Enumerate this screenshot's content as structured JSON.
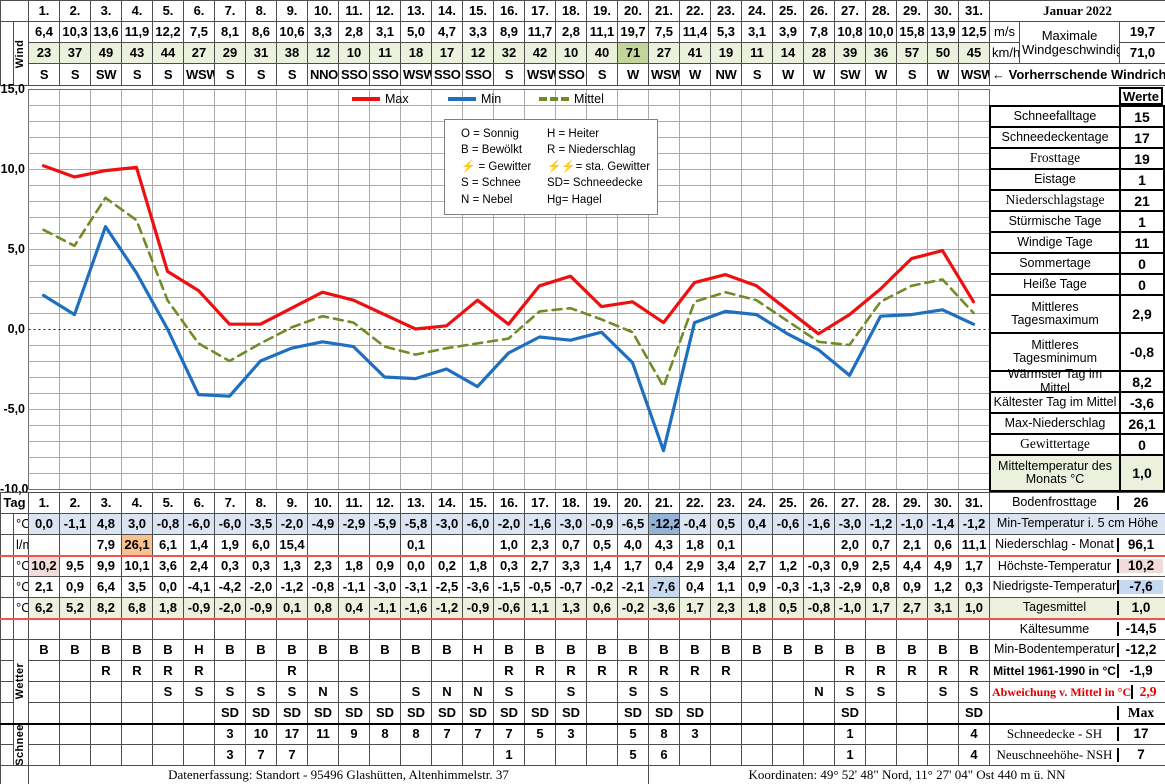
{
  "title": "Januar 2022",
  "days": [
    "1.",
    "2.",
    "3.",
    "4.",
    "5.",
    "6.",
    "7.",
    "8.",
    "9.",
    "10.",
    "11.",
    "12.",
    "13.",
    "14.",
    "15.",
    "16.",
    "17.",
    "18.",
    "19.",
    "20.",
    "21.",
    "22.",
    "23.",
    "24.",
    "25.",
    "26.",
    "27.",
    "28.",
    "29.",
    "30.",
    "31."
  ],
  "wind": {
    "row_label": "Wind",
    "unit_ms": "m/s",
    "unit_kmh": "km/h",
    "speed_ms": [
      "6,4",
      "10,3",
      "13,6",
      "11,9",
      "12,2",
      "7,5",
      "8,1",
      "8,6",
      "10,6",
      "3,3",
      "2,8",
      "3,1",
      "5,0",
      "4,7",
      "3,3",
      "8,9",
      "11,7",
      "2,8",
      "11,1",
      "19,7",
      "7,5",
      "11,4",
      "5,3",
      "3,1",
      "3,9",
      "7,8",
      "10,8",
      "10,0",
      "15,8",
      "13,9",
      "12,5"
    ],
    "speed_kmh": [
      "23",
      "37",
      "49",
      "43",
      "44",
      "27",
      "29",
      "31",
      "38",
      "12",
      "10",
      "11",
      "18",
      "17",
      "12",
      "32",
      "42",
      "10",
      "40",
      "71",
      "27",
      "41",
      "19",
      "11",
      "14",
      "28",
      "39",
      "36",
      "57",
      "50",
      "45"
    ],
    "direction": [
      "S",
      "S",
      "SW",
      "S",
      "S",
      "WSW",
      "S",
      "S",
      "S",
      "NNO",
      "SSO",
      "SSO",
      "WSW",
      "SSO",
      "SSO",
      "S",
      "WSW",
      "SSO",
      "S",
      "W",
      "WSW",
      "W",
      "NW",
      "S",
      "W",
      "W",
      "SW",
      "W",
      "S",
      "W",
      "WSW"
    ],
    "max_label": "Maximale Windgeschwindigkeit",
    "max_ms": "19,7",
    "max_kmh": "71,0",
    "prevailing_label": "← Vorherrschende Windrichtung"
  },
  "chart_data": {
    "type": "line",
    "title": "",
    "xlabel": "Tag",
    "ylabel": "°C",
    "x": [
      1,
      2,
      3,
      4,
      5,
      6,
      7,
      8,
      9,
      10,
      11,
      12,
      13,
      14,
      15,
      16,
      17,
      18,
      19,
      20,
      21,
      22,
      23,
      24,
      25,
      26,
      27,
      28,
      29,
      30,
      31
    ],
    "ylim": [
      -10,
      15
    ],
    "grid": true,
    "legend_position": "top",
    "yticks": [
      {
        "value": 15,
        "label": "15,0"
      },
      {
        "value": 10,
        "label": "10,0"
      },
      {
        "value": 5,
        "label": "5,0"
      },
      {
        "value": 0,
        "label": "0,0"
      },
      {
        "value": -5,
        "label": "-5,0"
      },
      {
        "value": -10,
        "label": "-10,0"
      }
    ],
    "series": [
      {
        "name": "Max",
        "color": "#ee1010",
        "dashed": false,
        "values": [
          10.2,
          9.5,
          9.9,
          10.1,
          3.6,
          2.4,
          0.3,
          0.3,
          1.3,
          2.3,
          1.8,
          0.9,
          0.0,
          0.2,
          1.8,
          0.3,
          2.7,
          3.3,
          1.4,
          1.7,
          0.4,
          2.9,
          3.4,
          2.7,
          1.2,
          -0.3,
          0.9,
          2.5,
          4.4,
          4.9,
          1.7
        ]
      },
      {
        "name": "Min",
        "color": "#1f6fc0",
        "dashed": false,
        "values": [
          2.1,
          0.9,
          6.4,
          3.5,
          0.0,
          -4.1,
          -4.2,
          -2.0,
          -1.2,
          -0.8,
          -1.1,
          -3.0,
          -3.1,
          -2.5,
          -3.6,
          -1.5,
          -0.5,
          -0.7,
          -0.2,
          -2.1,
          -7.6,
          0.4,
          1.1,
          0.9,
          -0.3,
          -1.3,
          -2.9,
          0.8,
          0.9,
          1.2,
          0.3
        ]
      },
      {
        "name": "Mittel",
        "color": "#6f8c26",
        "dashed": true,
        "values": [
          6.2,
          5.2,
          8.2,
          6.8,
          1.8,
          -0.9,
          -2.0,
          -0.9,
          0.1,
          0.8,
          0.4,
          -1.1,
          -1.6,
          -1.2,
          -0.9,
          -0.6,
          1.1,
          1.3,
          0.6,
          -0.2,
          -3.6,
          1.7,
          2.3,
          1.8,
          0.5,
          -0.8,
          -1.0,
          1.7,
          2.7,
          3.1,
          1.0
        ]
      }
    ]
  },
  "weather_legend": {
    "left": [
      {
        "code": "O",
        "label": "Sonnig",
        "red": false
      },
      {
        "code": "B",
        "label": "Bewölkt",
        "red": false
      },
      {
        "code": "⚡",
        "label": "Gewitter",
        "red": true
      },
      {
        "code": "S",
        "label": "Schnee",
        "red": false
      },
      {
        "code": "N",
        "label": "Nebel",
        "red": false
      }
    ],
    "right": [
      {
        "code": "H",
        "label": "Heiter",
        "red": false
      },
      {
        "code": "R",
        "label": "Niederschlag",
        "red": false
      },
      {
        "code": "⚡⚡",
        "label": "sta. Gewitter",
        "red": true
      },
      {
        "code": "SD",
        "label": "Schneedecke",
        "red": false
      },
      {
        "code": "Hg",
        "label": "Hagel",
        "red": false
      }
    ]
  },
  "sidebar": {
    "header": "Werte",
    "rows": [
      {
        "label": "Schneefalltage",
        "value": "15"
      },
      {
        "label": "Schneedeckentage",
        "value": "17"
      },
      {
        "label": "Frosttage",
        "value": "19"
      },
      {
        "label": "Eistage",
        "value": "1"
      },
      {
        "label": "Niederschlagstage",
        "value": "21"
      },
      {
        "label": "Stürmische Tage",
        "value": "1"
      },
      {
        "label": "Windige Tage",
        "value": "11"
      },
      {
        "label": "Sommertage",
        "value": "0"
      },
      {
        "label": "Heiße Tage",
        "value": "0"
      },
      {
        "label": "Mittleres Tagesmaximum",
        "value": "2,9"
      },
      {
        "label": "Mittleres Tagesminimum",
        "value": "-0,8"
      },
      {
        "label": "Wärmster Tag im Mittel",
        "value": "8,2"
      },
      {
        "label": "Kältester Tag im Mittel",
        "value": "-3,6"
      },
      {
        "label": "Max-Niederschlag",
        "value": "26,1"
      },
      {
        "label": "Gewittertage",
        "value": "0"
      },
      {
        "label": "Mitteltemperatur des Monats °C",
        "value": "1,0"
      }
    ]
  },
  "bottom": {
    "tag_label": "Tag",
    "unit_c": "°C",
    "unit_lm": "l/m²",
    "wetter_label": "Wetter",
    "schnee_label": "Schnee",
    "min5": [
      "0,0",
      "-1,1",
      "4,8",
      "3,0",
      "-0,8",
      "-6,0",
      "-6,0",
      "-3,5",
      "-2,0",
      "-4,9",
      "-2,9",
      "-5,9",
      "-5,8",
      "-3,0",
      "-6,0",
      "-2,0",
      "-1,6",
      "-3,0",
      "-0,9",
      "-6,5",
      "-12,2",
      "-0,4",
      "0,5",
      "0,4",
      "-0,6",
      "-1,6",
      "-3,0",
      "-1,2",
      "-1,0",
      "-1,4",
      "-1,2"
    ],
    "precip": [
      "",
      "",
      "7,9",
      "26,1",
      "6,1",
      "1,4",
      "1,9",
      "6,0",
      "15,4",
      "",
      "",
      "",
      "0,1",
      "",
      "",
      "1,0",
      "2,3",
      "0,7",
      "0,5",
      "4,0",
      "4,3",
      "1,8",
      "0,1",
      "",
      "",
      "",
      "2,0",
      "0,7",
      "2,1",
      "0,6",
      "11,1"
    ],
    "tmax": [
      "10,2",
      "9,5",
      "9,9",
      "10,1",
      "3,6",
      "2,4",
      "0,3",
      "0,3",
      "1,3",
      "2,3",
      "1,8",
      "0,9",
      "0,0",
      "0,2",
      "1,8",
      "0,3",
      "2,7",
      "3,3",
      "1,4",
      "1,7",
      "0,4",
      "2,9",
      "3,4",
      "2,7",
      "1,2",
      "-0,3",
      "0,9",
      "2,5",
      "4,4",
      "4,9",
      "1,7"
    ],
    "tmin": [
      "2,1",
      "0,9",
      "6,4",
      "3,5",
      "0,0",
      "-4,1",
      "-4,2",
      "-2,0",
      "-1,2",
      "-0,8",
      "-1,1",
      "-3,0",
      "-3,1",
      "-2,5",
      "-3,6",
      "-1,5",
      "-0,5",
      "-0,7",
      "-0,2",
      "-2,1",
      "-7,6",
      "0,4",
      "1,1",
      "0,9",
      "-0,3",
      "-1,3",
      "-2,9",
      "0,8",
      "0,9",
      "1,2",
      "0,3"
    ],
    "tmittel": [
      "6,2",
      "5,2",
      "8,2",
      "6,8",
      "1,8",
      "-0,9",
      "-2,0",
      "-0,9",
      "0,1",
      "0,8",
      "0,4",
      "-1,1",
      "-1,6",
      "-1,2",
      "-0,9",
      "-0,6",
      "1,1",
      "1,3",
      "0,6",
      "-0,2",
      "-3,6",
      "1,7",
      "2,3",
      "1,8",
      "0,5",
      "-0,8",
      "-1,0",
      "1,7",
      "2,7",
      "3,1",
      "1,0"
    ],
    "weather_sky": [
      "B",
      "B",
      "B",
      "B",
      "B",
      "H",
      "B",
      "B",
      "B",
      "B",
      "B",
      "B",
      "B",
      "B",
      "H",
      "B",
      "B",
      "B",
      "B",
      "B",
      "B",
      "B",
      "B",
      "B",
      "B",
      "B",
      "B",
      "B",
      "B",
      "B",
      "B"
    ],
    "weather_rain": [
      "",
      "",
      "R",
      "R",
      "R",
      "R",
      "",
      "",
      "R",
      "",
      "",
      "",
      "",
      "",
      "",
      "R",
      "R",
      "R",
      "R",
      "R",
      "R",
      "R",
      "R",
      "",
      "",
      "",
      "R",
      "R",
      "R",
      "R",
      "R"
    ],
    "weather_snow_fog": [
      "",
      "",
      "",
      "",
      "S",
      "S",
      "S",
      "S",
      "S",
      "N",
      "S",
      "",
      "S",
      "N",
      "N",
      "S",
      "",
      "S",
      "",
      "S",
      "S",
      "",
      "",
      "",
      "",
      "N",
      "S",
      "S",
      "",
      "S",
      "S"
    ],
    "weather_snowcover": [
      "",
      "",
      "",
      "",
      "",
      "",
      "SD",
      "SD",
      "SD",
      "SD",
      "SD",
      "SD",
      "SD",
      "SD",
      "SD",
      "SD",
      "SD",
      "SD",
      "",
      "SD",
      "SD",
      "SD",
      "",
      "",
      "",
      "",
      "SD",
      "",
      "",
      "",
      "SD"
    ],
    "snow_height": [
      "",
      "",
      "",
      "",
      "",
      "",
      "3",
      "10",
      "17",
      "11",
      "9",
      "8",
      "8",
      "7",
      "7",
      "7",
      "5",
      "3",
      "",
      "5",
      "8",
      "3",
      "",
      "",
      "",
      "",
      "1",
      "",
      "",
      "",
      "4"
    ],
    "new_snow": [
      "",
      "",
      "",
      "",
      "",
      "",
      "3",
      "7",
      "7",
      "",
      "",
      "",
      "",
      "",
      "",
      "1",
      "",
      "",
      "",
      "5",
      "6",
      "",
      "",
      "",
      "",
      "",
      "1",
      "",
      "",
      "",
      "4"
    ],
    "panel": [
      {
        "label": "Bodenfrosttage",
        "value": "26"
      },
      {
        "label": "Min-Temperatur i. 5 cm Höhe",
        "value": ""
      },
      {
        "label": "Niederschlag - Monat",
        "value": "96,1"
      },
      {
        "label": "Höchste-Temperatur",
        "value": "10,2"
      },
      {
        "label": "Niedrigste-Temperatur",
        "value": "-7,6"
      },
      {
        "label": "Tagesmittel",
        "value": "1,0"
      },
      {
        "label": "Kältesumme",
        "value": "-14,5"
      },
      {
        "label": "Min-Bodentemperatur",
        "value": "-12,2"
      },
      {
        "label": "Mittel 1961-1990 in °C",
        "value": "-1,9"
      },
      {
        "label": "Abweichung v. Mittel in °C",
        "value": "2,9"
      },
      {
        "label": "",
        "value": "Max"
      },
      {
        "label": "Schneedecke -  SH",
        "value": "17"
      },
      {
        "label": "Neuschneehöhe- NSH",
        "value": "7"
      }
    ]
  },
  "footer": {
    "left": "Datenerfassung:  Standort -  95496  Glashütten, Altenhimmelstr. 37",
    "right": "Koordinaten:  49° 52' 48\" Nord,   11° 27' 04\" Ost   440 m ü. NN"
  }
}
